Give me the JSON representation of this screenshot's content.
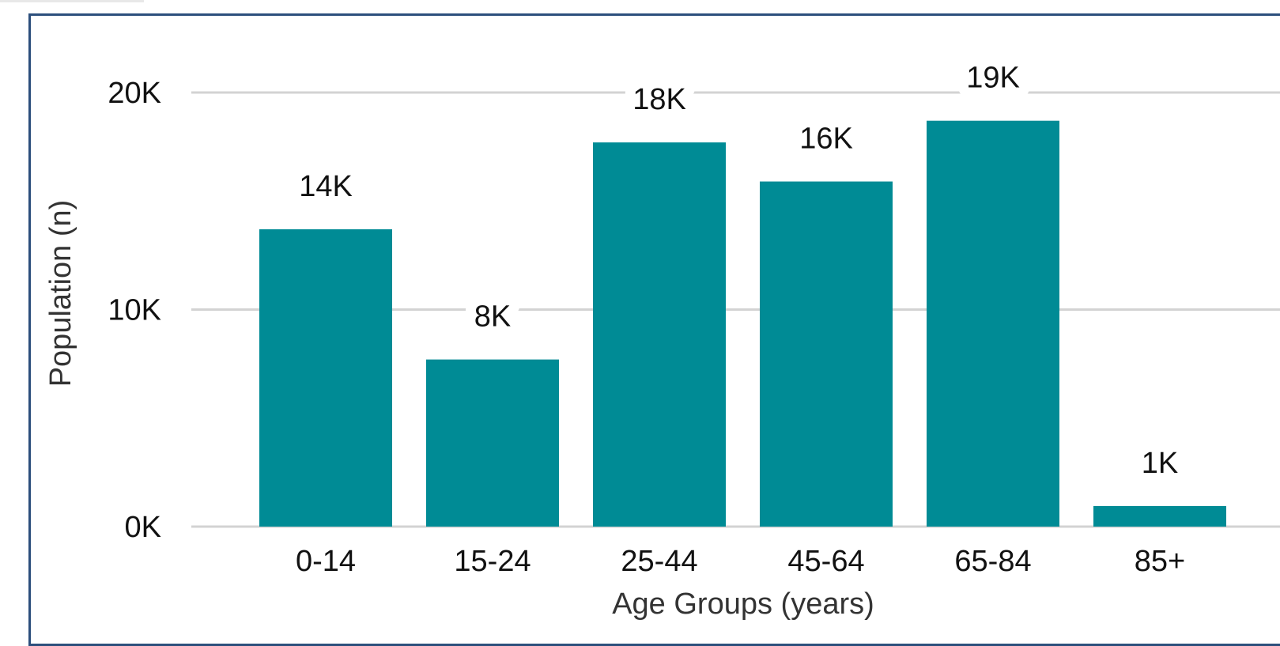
{
  "colors": {
    "bar": "#008b95",
    "grid": "#d3d3d3",
    "frame": "#2c4f7c"
  },
  "chart_data": {
    "type": "bar",
    "categories": [
      "0-14",
      "15-24",
      "25-44",
      "45-64",
      "65-84",
      "85+"
    ],
    "values": [
      13700,
      7700,
      17700,
      15900,
      18700,
      950
    ],
    "value_labels": [
      "14K",
      "8K",
      "18K",
      "16K",
      "19K",
      "1K"
    ],
    "title": "",
    "xlabel": "Age Groups (years)",
    "ylabel": "Population (n)",
    "ylim": [
      0,
      20000
    ],
    "yticks": [
      0,
      10000,
      20000
    ],
    "ytick_labels": [
      "0K",
      "10K",
      "20K"
    ],
    "grid": true,
    "legend": "none"
  }
}
